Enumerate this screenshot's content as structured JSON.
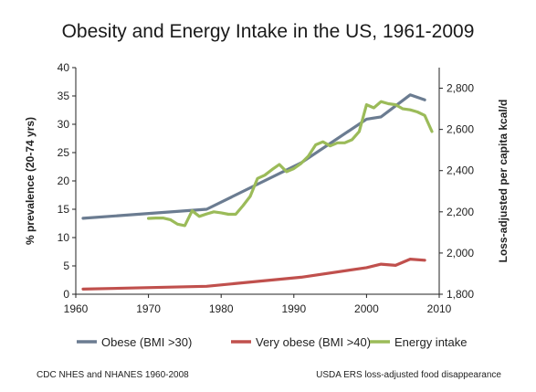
{
  "chart_data": {
    "type": "line",
    "title": "Obesity and Energy Intake in the US, 1961-2009",
    "xlabel": "",
    "ylabel": "% prevalence (20-74 yrs)",
    "y2label": "Loss-adjusted per capita kcal/d",
    "xlim": [
      1960,
      2010
    ],
    "ylim": [
      0,
      40
    ],
    "y2lim": [
      1800,
      2900
    ],
    "x_ticks": [
      1960,
      1970,
      1980,
      1990,
      2000,
      2010
    ],
    "y_ticks": [
      0,
      5,
      10,
      15,
      20,
      25,
      30,
      35,
      40
    ],
    "y2_ticks": [
      "1,800",
      "2,000",
      "2,200",
      "2,400",
      "2,600",
      "2,800"
    ],
    "y2_tick_values": [
      1800,
      2000,
      2200,
      2400,
      2600,
      2800
    ],
    "legend_position": "bottom",
    "series": [
      {
        "name": "Obese (BMI >30)",
        "color": "#6b7c91",
        "axis": "left",
        "x": [
          1961,
          1978,
          1991,
          2000,
          2002,
          2006,
          2008
        ],
        "y": [
          13.4,
          15.0,
          23.2,
          30.9,
          31.3,
          35.2,
          34.3
        ]
      },
      {
        "name": "Very obese (BMI >40)",
        "color": "#c0504d",
        "axis": "left",
        "x": [
          1961,
          1978,
          1991,
          2000,
          2002,
          2004,
          2006,
          2008
        ],
        "y": [
          0.9,
          1.4,
          3.0,
          4.7,
          5.3,
          5.1,
          6.2,
          6.0
        ]
      },
      {
        "name": "Energy intake",
        "color": "#9bbb59",
        "axis": "right",
        "x": [
          1970,
          1971,
          1972,
          1973,
          1974,
          1975,
          1976,
          1977,
          1978,
          1979,
          1980,
          1981,
          1982,
          1983,
          1984,
          1985,
          1986,
          1987,
          1988,
          1989,
          1990,
          1991,
          1992,
          1993,
          1994,
          1995,
          1996,
          1997,
          1998,
          1999,
          2000,
          2001,
          2002,
          2003,
          2004,
          2005,
          2006,
          2007,
          2008,
          2009
        ],
        "y": [
          2168,
          2170,
          2170,
          2162,
          2140,
          2133,
          2205,
          2178,
          2190,
          2200,
          2195,
          2188,
          2188,
          2230,
          2275,
          2362,
          2378,
          2405,
          2430,
          2395,
          2410,
          2435,
          2470,
          2525,
          2540,
          2520,
          2535,
          2535,
          2550,
          2590,
          2720,
          2705,
          2735,
          2725,
          2720,
          2700,
          2695,
          2685,
          2668,
          2590
        ]
      }
    ]
  },
  "sources": {
    "left": "CDC NHES and NHANES 1960-2008",
    "right": "USDA ERS loss-adjusted food disappearance"
  }
}
